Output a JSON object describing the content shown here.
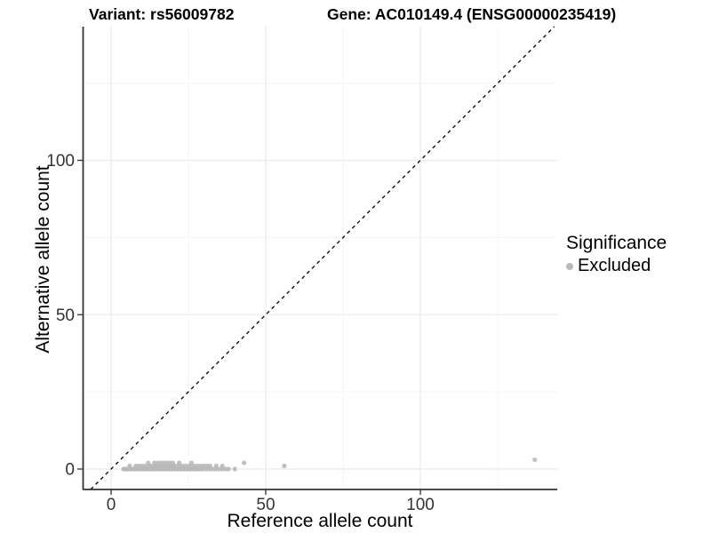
{
  "titles": {
    "variant": "Variant: rs56009782",
    "gene": "Gene: AC010149.4 (ENSG00000235419)"
  },
  "axes": {
    "x": {
      "label": "Reference allele count",
      "ticks": [
        0,
        50,
        100
      ]
    },
    "y": {
      "label": "Alternative allele count",
      "ticks": [
        0,
        50,
        100
      ]
    }
  },
  "legend": {
    "title": "Significance",
    "items": [
      {
        "label": "Excluded",
        "color": "#b9b9b9"
      }
    ]
  },
  "colors": {
    "point": "#b9b9b9",
    "axis_line": "#333333",
    "tick_mark": "#333333",
    "tick_label": "#333333",
    "grid_major": "#ebebeb",
    "grid_minor": "#f4f4f4",
    "identity_line": "#000000",
    "background": "#ffffff"
  },
  "chart_data": {
    "type": "scatter",
    "title": "",
    "xlabel": "Reference allele count",
    "ylabel": "Alternative allele count",
    "xlim": [
      -9,
      144
    ],
    "ylim": [
      -7,
      143
    ],
    "x_ticks": [
      0,
      50,
      100
    ],
    "y_ticks": [
      0,
      50,
      100
    ],
    "minor_ticks": [
      25,
      75,
      125
    ],
    "grid": true,
    "identity_line_dashed": true,
    "legend_position": "right",
    "series": [
      {
        "name": "Excluded",
        "color": "#b9b9b9",
        "points": [
          [
            4,
            0
          ],
          [
            4.5,
            0
          ],
          [
            5,
            0
          ],
          [
            5.5,
            0
          ],
          [
            6,
            0
          ],
          [
            6.5,
            0
          ],
          [
            7,
            0
          ],
          [
            7.5,
            0
          ],
          [
            8,
            0
          ],
          [
            8.5,
            0
          ],
          [
            9,
            0
          ],
          [
            9.5,
            0
          ],
          [
            10,
            0
          ],
          [
            10.5,
            0
          ],
          [
            11,
            0
          ],
          [
            11.5,
            0
          ],
          [
            12,
            0
          ],
          [
            12.5,
            0
          ],
          [
            13,
            0
          ],
          [
            13.5,
            0
          ],
          [
            14,
            0
          ],
          [
            14.5,
            0
          ],
          [
            15,
            0
          ],
          [
            15.5,
            0
          ],
          [
            16,
            0
          ],
          [
            16.5,
            0
          ],
          [
            17,
            0
          ],
          [
            17.5,
            0
          ],
          [
            18,
            0
          ],
          [
            18.5,
            0
          ],
          [
            19,
            0
          ],
          [
            19.5,
            0
          ],
          [
            20,
            0
          ],
          [
            20.5,
            0
          ],
          [
            21,
            0
          ],
          [
            21.5,
            0
          ],
          [
            22,
            0
          ],
          [
            22.5,
            0
          ],
          [
            23,
            0
          ],
          [
            23.5,
            0
          ],
          [
            24,
            0
          ],
          [
            24.5,
            0
          ],
          [
            25,
            0
          ],
          [
            25.5,
            0
          ],
          [
            26,
            0
          ],
          [
            26.5,
            0
          ],
          [
            27,
            0
          ],
          [
            27.5,
            0
          ],
          [
            28,
            0
          ],
          [
            28.5,
            0
          ],
          [
            29,
            0
          ],
          [
            30,
            0
          ],
          [
            31,
            0
          ],
          [
            32,
            0
          ],
          [
            33,
            0
          ],
          [
            34,
            0
          ],
          [
            35,
            0
          ],
          [
            36,
            0
          ],
          [
            37,
            0
          ],
          [
            38,
            0
          ],
          [
            40,
            0
          ],
          [
            6,
            1
          ],
          [
            8,
            1
          ],
          [
            9,
            1
          ],
          [
            10,
            1
          ],
          [
            11,
            1
          ],
          [
            12,
            1
          ],
          [
            13,
            1
          ],
          [
            14,
            1
          ],
          [
            14.5,
            1
          ],
          [
            15,
            1
          ],
          [
            15.5,
            1
          ],
          [
            16,
            1
          ],
          [
            16.5,
            1
          ],
          [
            17,
            1
          ],
          [
            17.5,
            1
          ],
          [
            18,
            1
          ],
          [
            18.5,
            1
          ],
          [
            19,
            1
          ],
          [
            19.5,
            1
          ],
          [
            20,
            1
          ],
          [
            21,
            1
          ],
          [
            22,
            1
          ],
          [
            23,
            1
          ],
          [
            24,
            1
          ],
          [
            25,
            1
          ],
          [
            26,
            1
          ],
          [
            27,
            1
          ],
          [
            28,
            1
          ],
          [
            29,
            1
          ],
          [
            30,
            1
          ],
          [
            31,
            1
          ],
          [
            32,
            1
          ],
          [
            34,
            1
          ],
          [
            36,
            1
          ],
          [
            12,
            2
          ],
          [
            14,
            2
          ],
          [
            15,
            2
          ],
          [
            16,
            2
          ],
          [
            17,
            2
          ],
          [
            18,
            2
          ],
          [
            19,
            2
          ],
          [
            20,
            2
          ],
          [
            22,
            2
          ],
          [
            26,
            2
          ],
          [
            43,
            2
          ],
          [
            56,
            1
          ],
          [
            137,
            3
          ]
        ]
      }
    ]
  }
}
